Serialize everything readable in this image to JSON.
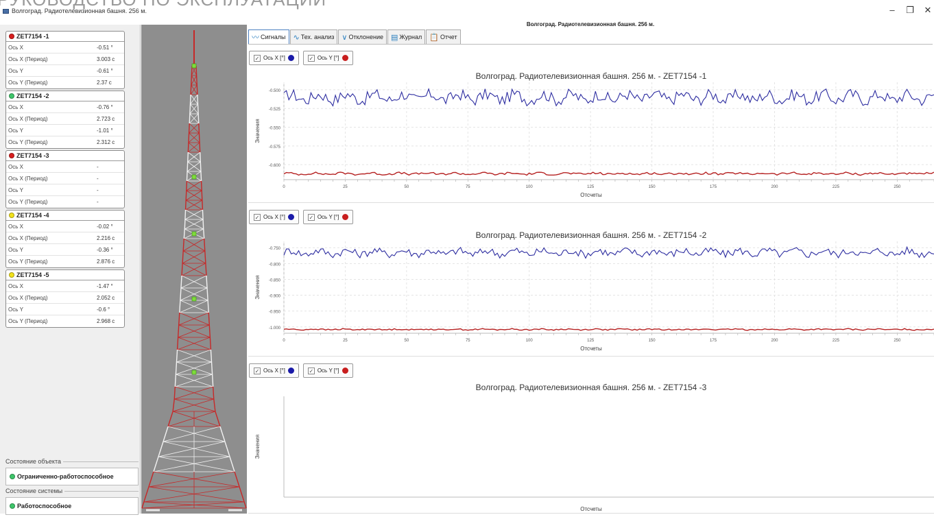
{
  "background_text": "РУКОВОДСТВО ПО ЭКСПЛУАТАЦИИ",
  "window": {
    "title": "Волгоград. Радиотелевизионная башня. 256 м.",
    "minimize": "–",
    "restore": "❐",
    "close": "✕"
  },
  "main_title": "Волгоград. Радиотелевизионная башня. 256 м.",
  "tabs": [
    {
      "label": "Сигналы",
      "icon": "signal-wave-icon"
    },
    {
      "label": "Тех. анализ",
      "icon": "analysis-wave-icon"
    },
    {
      "label": "Отклонение",
      "icon": "deviation-icon"
    },
    {
      "label": "Журнал",
      "icon": "journal-icon"
    },
    {
      "label": "Отчет",
      "icon": "report-clipboard-icon"
    }
  ],
  "sensors": [
    {
      "name": "ZET7154 -1",
      "color": "#d81e1e",
      "rows": [
        {
          "k": "Ось X",
          "v": "-0.51 °"
        },
        {
          "k": "Ось X (Период)",
          "v": "3.003 с"
        },
        {
          "k": "Ось Y",
          "v": "-0.61 °"
        },
        {
          "k": "Ось Y (Период)",
          "v": "2.37 с"
        }
      ]
    },
    {
      "name": "ZET7154 -2",
      "color": "#3ec66a",
      "rows": [
        {
          "k": "Ось X",
          "v": "-0.76 °"
        },
        {
          "k": "Ось X (Период)",
          "v": "2.723 с"
        },
        {
          "k": "Ось Y",
          "v": "-1.01 °"
        },
        {
          "k": "Ось Y (Период)",
          "v": "2.312 с"
        }
      ]
    },
    {
      "name": "ZET7154 -3",
      "color": "#d81e1e",
      "rows": [
        {
          "k": "Ось X",
          "v": "-"
        },
        {
          "k": "Ось X (Период)",
          "v": "-"
        },
        {
          "k": "Ось Y",
          "v": "-"
        },
        {
          "k": "Ось Y (Период)",
          "v": "-"
        }
      ]
    },
    {
      "name": "ZET7154 -4",
      "color": "#f2e21b",
      "rows": [
        {
          "k": "Ось X",
          "v": "-0.02 °"
        },
        {
          "k": "Ось X (Период)",
          "v": "2.216 с"
        },
        {
          "k": "Ось Y",
          "v": "-0.36 °"
        },
        {
          "k": "Ось Y (Период)",
          "v": "2.876 с"
        }
      ]
    },
    {
      "name": "ZET7154 -5",
      "color": "#f2e21b",
      "rows": [
        {
          "k": "Ось X",
          "v": "-1.47 °"
        },
        {
          "k": "Ось X (Период)",
          "v": "2.052 с"
        },
        {
          "k": "Ось Y",
          "v": "-0.6 °"
        },
        {
          "k": "Ось Y (Период)",
          "v": "2.968 с"
        }
      ]
    }
  ],
  "object_state": {
    "label": "Состояние объекта",
    "value": "Ограниченно-работоспособное",
    "color": "#3ec66a"
  },
  "system_state": {
    "label": "Состояние системы",
    "value": "Работоспособное",
    "color": "#3ec66a"
  },
  "legend": {
    "x_label": "Ось X [°]",
    "y_label": "Ось Y [°]",
    "x_color": "#1a1aa8",
    "y_color": "#c81e1e"
  },
  "colors": {
    "series_x": "#2c2ca0",
    "series_y": "#b52020",
    "tower_red": "#c62828"
  },
  "chart_data": [
    {
      "type": "line",
      "title": "Волгоград. Радиотелевизионная башня. 256 м. - ZET7154 -1",
      "xlabel": "Отсчеты",
      "ylabel": "Значения",
      "xlim": [
        0,
        265
      ],
      "ylim": [
        -0.62,
        -0.49
      ],
      "xticks": [
        0,
        25,
        50,
        75,
        100,
        125,
        150,
        175,
        200,
        225,
        250
      ],
      "yticks": [
        -0.5,
        -0.525,
        -0.55,
        -0.575,
        -0.6
      ],
      "ytick_labels": [
        "-0.500",
        "-0.525",
        "-0.550",
        "-0.575",
        "-0.600"
      ],
      "series": [
        {
          "axis": "x",
          "mean": -0.51,
          "amp": 0.008
        },
        {
          "axis": "y",
          "mean": -0.612,
          "amp": 0.0015
        }
      ]
    },
    {
      "type": "line",
      "title": "Волгоград. Радиотелевизионная башня. 256 м. - ZET7154 -2",
      "xlabel": "Отсчеты",
      "ylabel": "Значения",
      "xlim": [
        0,
        265
      ],
      "ylim": [
        -1.02,
        -0.73
      ],
      "xticks": [
        0,
        25,
        50,
        75,
        100,
        125,
        150,
        175,
        200,
        225,
        250
      ],
      "yticks": [
        -0.75,
        -0.8,
        -0.85,
        -0.9,
        -0.95,
        -1.0
      ],
      "ytick_labels": [
        "-0.750",
        "-0.800",
        "-0.850",
        "-0.900",
        "-0.950",
        "-1.000"
      ],
      "series": [
        {
          "axis": "x",
          "mean": -0.765,
          "amp": 0.012
        },
        {
          "axis": "y",
          "mean": -1.008,
          "amp": 0.002
        }
      ]
    },
    {
      "type": "line",
      "title": "Волгоград. Радиотелевизионная башня. 256 м. - ZET7154 -3",
      "xlabel": "Отсчеты",
      "ylabel": "Значения",
      "xticks": [],
      "yticks": [],
      "ytick_labels": [],
      "series": []
    }
  ]
}
